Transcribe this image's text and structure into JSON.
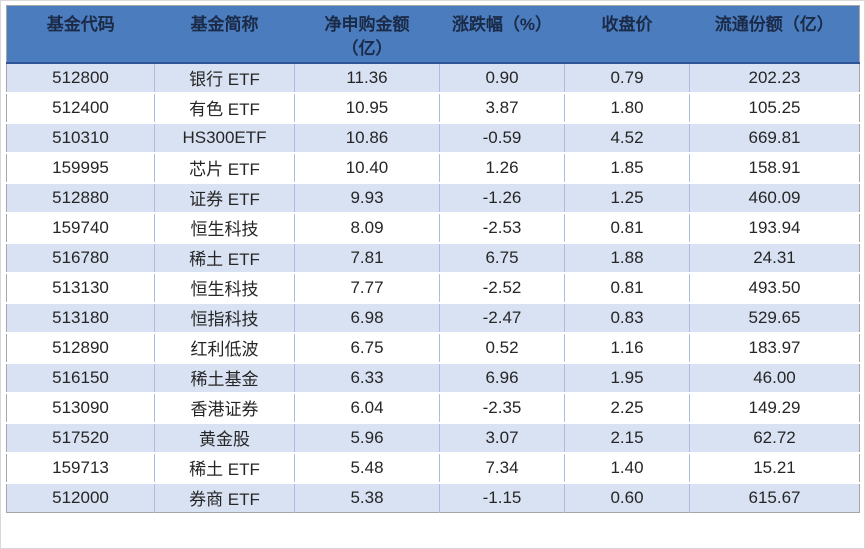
{
  "chart_data": {
    "type": "table",
    "columns": [
      "基金代码",
      "基金简称",
      "净申购金额\n（亿）",
      "涨跌幅（%）",
      "收盘价",
      "流通份额（亿）"
    ],
    "rows": [
      [
        "512800",
        "银行 ETF",
        "11.36",
        "0.90",
        "0.79",
        "202.23"
      ],
      [
        "512400",
        "有色 ETF",
        "10.95",
        "3.87",
        "1.80",
        "105.25"
      ],
      [
        "510310",
        "HS300ETF",
        "10.86",
        "-0.59",
        "4.52",
        "669.81"
      ],
      [
        "159995",
        "芯片 ETF",
        "10.40",
        "1.26",
        "1.85",
        "158.91"
      ],
      [
        "512880",
        "证券 ETF",
        "9.93",
        "-1.26",
        "1.25",
        "460.09"
      ],
      [
        "159740",
        "恒生科技",
        "8.09",
        "-2.53",
        "0.81",
        "193.94"
      ],
      [
        "516780",
        "稀土 ETF",
        "7.81",
        "6.75",
        "1.88",
        "24.31"
      ],
      [
        "513130",
        "恒生科技",
        "7.77",
        "-2.52",
        "0.81",
        "493.50"
      ],
      [
        "513180",
        "恒指科技",
        "6.98",
        "-2.47",
        "0.83",
        "529.65"
      ],
      [
        "512890",
        "红利低波",
        "6.75",
        "0.52",
        "1.16",
        "183.97"
      ],
      [
        "516150",
        "稀土基金",
        "6.33",
        "6.96",
        "1.95",
        "46.00"
      ],
      [
        "513090",
        "香港证券",
        "6.04",
        "-2.35",
        "2.25",
        "149.29"
      ],
      [
        "517520",
        "黄金股",
        "5.96",
        "3.07",
        "2.15",
        "62.72"
      ],
      [
        "159713",
        "稀土 ETF",
        "5.48",
        "7.34",
        "1.40",
        "15.21"
      ],
      [
        "512000",
        "券商 ETF",
        "5.38",
        "-1.15",
        "0.60",
        "615.67"
      ]
    ]
  },
  "colors": {
    "header_bg": "#4A7CBE",
    "header_text": "#1B2A47",
    "band_row_bg": "#D9E2F3",
    "plain_row_bg": "#FFFFFF",
    "body_text": "#262626",
    "column_divider": "#ABBEDD",
    "header_bottom_border": "#2F5597",
    "table_border": "#A6A6A6",
    "row_separator": "#FFFFFF"
  }
}
